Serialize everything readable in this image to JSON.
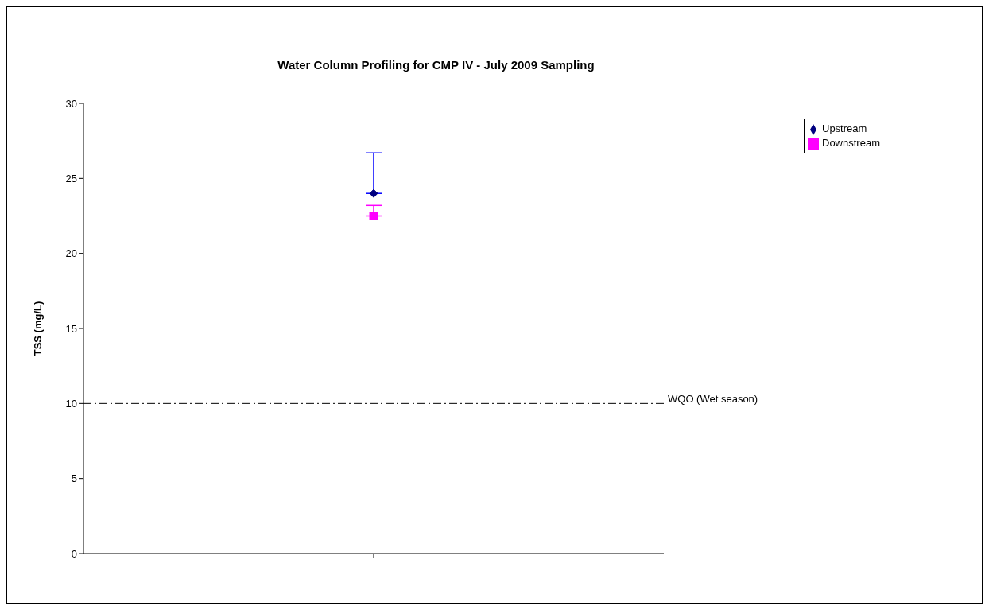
{
  "chart_data": {
    "type": "line",
    "title": "Water Column Profiling for CMP IV - July 2009 Sampling",
    "ylabel": "TSS (mg/L)",
    "categories": [
      null
    ],
    "series": [
      {
        "name": "Upstream",
        "color": "#000080",
        "values": [
          24
        ],
        "errors": [
          [
            24,
            26.7
          ]
        ],
        "marker": "diamond"
      },
      {
        "name": "Downstream",
        "color": "#ff00ff",
        "values": [
          22.5
        ],
        "errors": [
          [
            22.5,
            23.2
          ]
        ],
        "marker": "square"
      }
    ],
    "ylim": [
      0,
      30
    ],
    "yticks": [
      0,
      5,
      10,
      15,
      20,
      25,
      30
    ],
    "grid": false,
    "legend": "top right",
    "ref_lines": [
      {
        "axis": "y",
        "value": 10,
        "label": "WQO (Wet season)",
        "color": "#000000",
        "line_style": "dashed"
      }
    ]
  }
}
